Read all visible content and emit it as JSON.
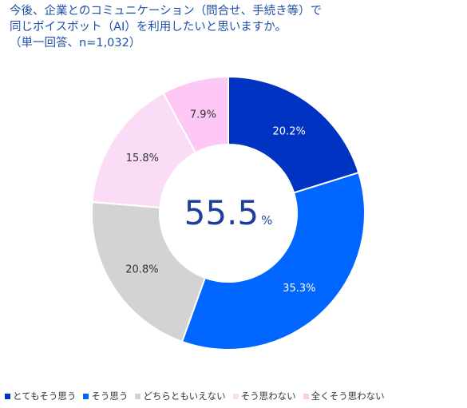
{
  "title_lines": [
    "今後、企業とのコミュニケーション（問合せ、手続き等）で",
    "同じボイスボット（AI）を利用したいと思いますか。",
    "（単一回答、n=1,032）"
  ],
  "center": {
    "value": "55.5",
    "unit": "%"
  },
  "colors": [
    "#0033c2",
    "#0066ff",
    "#d3d3d3",
    "#fbdcf6",
    "#fdc8f6"
  ],
  "chart_data": {
    "type": "pie",
    "categories": [
      "とてもそう思う",
      "そう思う",
      "どちらともいえない",
      "そう思わない",
      "全くそう思わない"
    ],
    "values": [
      20.2,
      35.3,
      20.8,
      15.8,
      7.9
    ],
    "labels": [
      "20.2%",
      "35.3%",
      "20.8%",
      "15.8%",
      "7.9%"
    ],
    "legend_position": "bottom"
  }
}
